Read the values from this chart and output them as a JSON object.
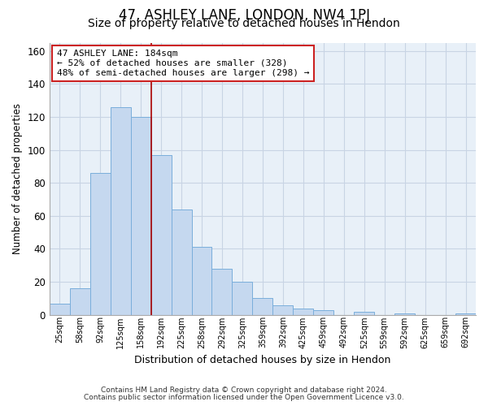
{
  "title": "47, ASHLEY LANE, LONDON, NW4 1PJ",
  "subtitle": "Size of property relative to detached houses in Hendon",
  "xlabel": "Distribution of detached houses by size in Hendon",
  "ylabel": "Number of detached properties",
  "bar_labels": [
    "25sqm",
    "58sqm",
    "92sqm",
    "125sqm",
    "158sqm",
    "192sqm",
    "225sqm",
    "258sqm",
    "292sqm",
    "325sqm",
    "359sqm",
    "392sqm",
    "425sqm",
    "459sqm",
    "492sqm",
    "525sqm",
    "559sqm",
    "592sqm",
    "625sqm",
    "659sqm",
    "692sqm"
  ],
  "bar_values": [
    7,
    16,
    86,
    126,
    120,
    97,
    64,
    41,
    28,
    20,
    10,
    6,
    4,
    3,
    0,
    2,
    0,
    1,
    0,
    0,
    1
  ],
  "bar_color": "#c5d8ef",
  "bar_edge_color": "#7aaedb",
  "vline_color": "#aa0000",
  "ylim": [
    0,
    165
  ],
  "yticks": [
    0,
    20,
    40,
    60,
    80,
    100,
    120,
    140,
    160
  ],
  "annotation_title": "47 ASHLEY LANE: 184sqm",
  "annotation_line1": "← 52% of detached houses are smaller (328)",
  "annotation_line2": "48% of semi-detached houses are larger (298) →",
  "footnote1": "Contains HM Land Registry data © Crown copyright and database right 2024.",
  "footnote2": "Contains public sector information licensed under the Open Government Licence v3.0.",
  "background_color": "#ffffff",
  "plot_bg_color": "#e8f0f8",
  "grid_color": "#c8d4e4",
  "title_fontsize": 12,
  "subtitle_fontsize": 10,
  "annotation_box_edge_color": "#cc2222",
  "annotation_box_fill": "#ffffff"
}
